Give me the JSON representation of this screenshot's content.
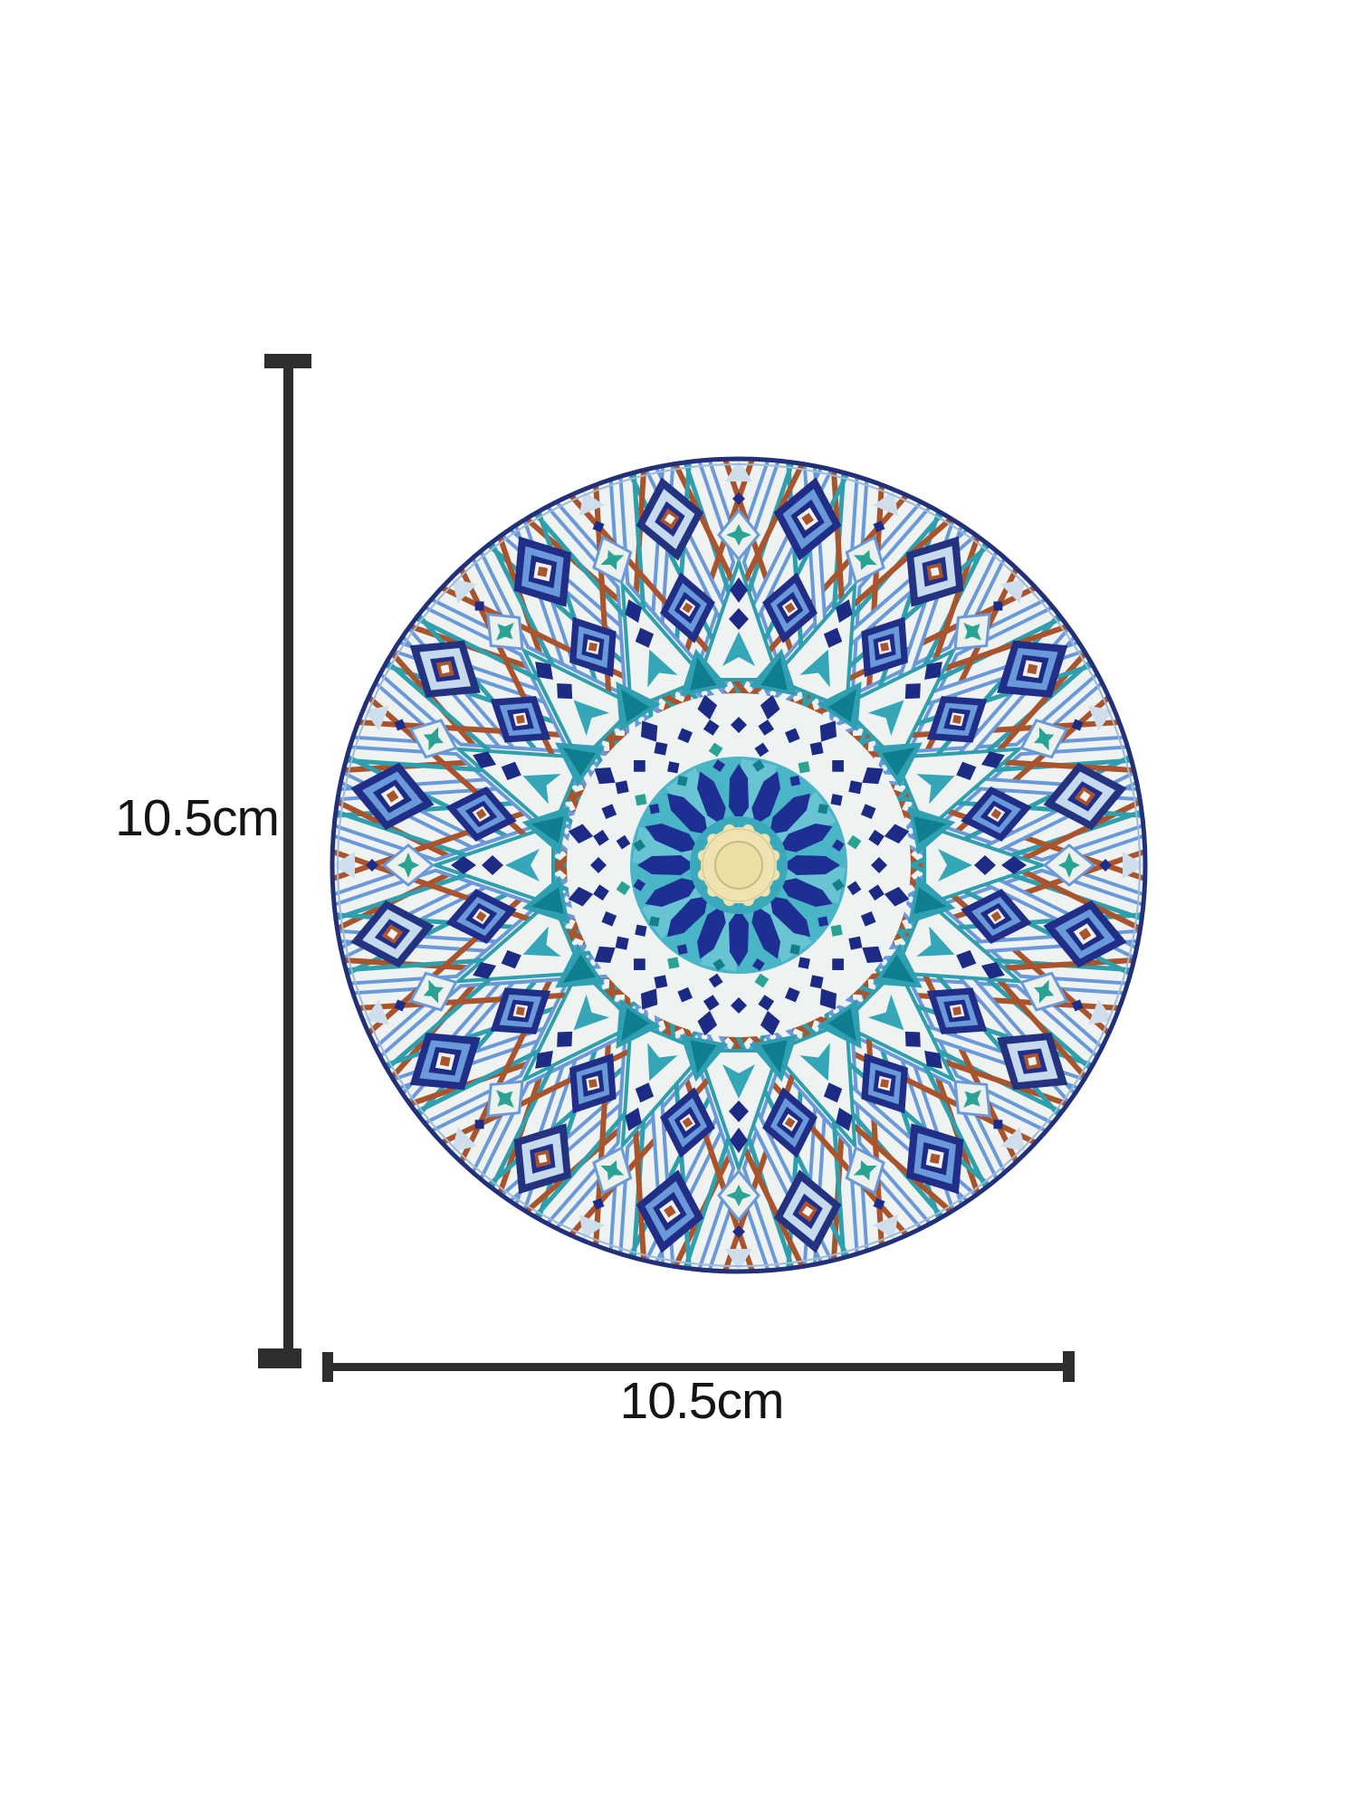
{
  "annotations": {
    "height_label": "10.5cm",
    "width_label": "10.5cm"
  },
  "colors": {
    "page_background": "#ffffff",
    "dimension_line": "#2e2e2e",
    "label_text": "#141414",
    "mosaic": {
      "ground_white": "#eef2f0",
      "navy": "#1e2c88",
      "navy_deep": "#1d2b85",
      "cornflower": "#6a99da",
      "pale_blue": "#c7d9ec",
      "turquoise": "#2f9fae",
      "turquoise_light": "#49b5c6",
      "teal_green": "#2aa394",
      "teal_dark": "#0f7f90",
      "terracotta": "#a9542c",
      "cream_center": "#efe3b2",
      "cream_inner": "#ecdfa6",
      "rim_navy": "#223079"
    }
  }
}
